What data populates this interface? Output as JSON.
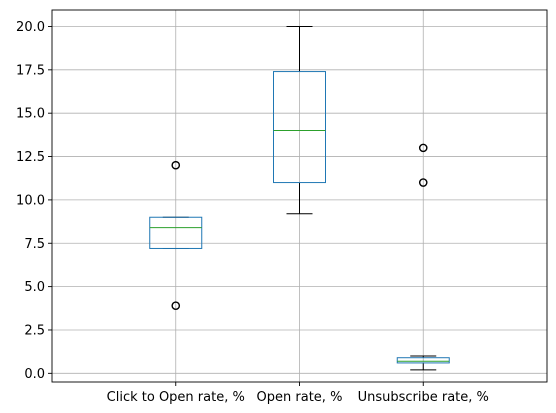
{
  "chart_data": {
    "type": "box",
    "title": "",
    "xlabel": "",
    "ylabel": "",
    "ylim": [
      -0.5,
      20.95
    ],
    "grid": true,
    "y_ticks": [
      0.0,
      2.5,
      5.0,
      7.5,
      10.0,
      12.5,
      15.0,
      17.5,
      20.0
    ],
    "y_tick_labels": [
      "0.0",
      "2.5",
      "5.0",
      "7.5",
      "10.0",
      "12.5",
      "15.0",
      "17.5",
      "20.0"
    ],
    "categories": [
      "Click to Open rate, %",
      "Open rate, %",
      "Unsubscribe rate, %"
    ],
    "boxes": [
      {
        "name": "Click to Open rate, %",
        "whisker_low": 7.2,
        "q1": 7.2,
        "median": 8.4,
        "q3": 9.0,
        "whisker_high": 9.0,
        "outliers": [
          3.9,
          12.0
        ]
      },
      {
        "name": "Open rate, %",
        "whisker_low": 9.2,
        "q1": 11.0,
        "median": 14.0,
        "q3": 17.4,
        "whisker_high": 20.0,
        "outliers": []
      },
      {
        "name": "Unsubscribe rate, %",
        "whisker_low": 0.2,
        "q1": 0.6,
        "median": 0.7,
        "q3": 0.9,
        "whisker_high": 1.0,
        "outliers": [
          11.0,
          13.0
        ]
      }
    ],
    "colors": {
      "box": "#1f77b4",
      "median": "#2ca02c",
      "whisker": "#000000",
      "outlier": "#000000",
      "grid": "#b0b0b0",
      "axis": "#000000"
    }
  }
}
